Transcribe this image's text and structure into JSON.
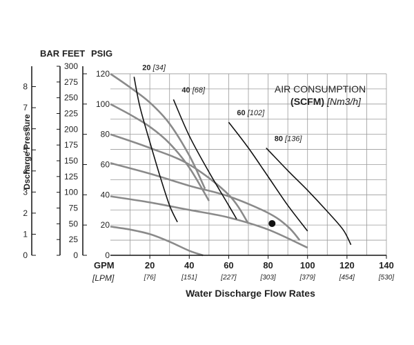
{
  "chart_data": {
    "type": "line",
    "headers": {
      "bar": "BAR",
      "feet": "FEET",
      "psig": "PSIG"
    },
    "ylabel": "Dscharge Pressure",
    "xlabel": "Water Discharge Flow Rates",
    "x_unit_primary": "GPM",
    "x_unit_secondary": "[LPM]",
    "xlim": [
      0,
      140
    ],
    "ylim": [
      0,
      125
    ],
    "x_ticks": [
      {
        "gpm": "20",
        "lpm": "[76]"
      },
      {
        "gpm": "40",
        "lpm": "[151]"
      },
      {
        "gpm": "60",
        "lpm": "[227]"
      },
      {
        "gpm": "80",
        "lpm": "[303]"
      },
      {
        "gpm": "100",
        "lpm": "[379]"
      },
      {
        "gpm": "120",
        "lpm": "[454]"
      },
      {
        "gpm": "140",
        "lpm": "[530]"
      }
    ],
    "psig_ticks": [
      "0",
      "20",
      "40",
      "60",
      "80",
      "100",
      "120"
    ],
    "feet_ticks": [
      "0",
      "25",
      "50",
      "75",
      "100",
      "125",
      "150",
      "175",
      "200",
      "225",
      "250",
      "275",
      "300"
    ],
    "bar_ticks": [
      "0",
      "1",
      "2",
      "3",
      "4",
      "5",
      "6",
      "7",
      "8"
    ],
    "inset": {
      "line1": "AIR CONSUMPTION",
      "scfm": "(SCFM)",
      "unit": "[Nm3/h]"
    },
    "pressure_curves": [
      {
        "x": [
          0,
          10,
          20,
          30,
          40,
          48
        ],
        "y": [
          120,
          111,
          101,
          87,
          66,
          44
        ]
      },
      {
        "x": [
          0,
          10,
          20,
          30,
          40,
          50
        ],
        "y": [
          100,
          93,
          85,
          74,
          58,
          36
        ]
      },
      {
        "x": [
          0,
          20,
          40,
          60,
          70
        ],
        "y": [
          80,
          71,
          60,
          40,
          21
        ]
      },
      {
        "x": [
          0,
          20,
          40,
          60,
          80,
          90,
          96
        ],
        "y": [
          61,
          54,
          46,
          39,
          28,
          19,
          10
        ]
      },
      {
        "x": [
          0,
          20,
          40,
          60,
          80,
          100
        ],
        "y": [
          39,
          35,
          30,
          25,
          17,
          5
        ]
      },
      {
        "x": [
          0,
          10,
          20,
          30,
          40,
          47
        ],
        "y": [
          19,
          17,
          14,
          9,
          3,
          0
        ]
      }
    ],
    "air_curves": [
      {
        "scfm": "20",
        "nm3h": "[34]",
        "x": [
          12,
          15,
          20,
          25,
          30,
          34
        ],
        "y": [
          118,
          98,
          75,
          53,
          33,
          22
        ]
      },
      {
        "scfm": "40",
        "nm3h": "[68]",
        "x": [
          32,
          40,
          50,
          60,
          64
        ],
        "y": [
          103,
          79,
          55,
          33,
          24
        ]
      },
      {
        "scfm": "60",
        "nm3h": "[102]",
        "x": [
          60,
          70,
          80,
          90,
          100
        ],
        "y": [
          88,
          71,
          52,
          33,
          16
        ]
      },
      {
        "scfm": "80",
        "nm3h": "[136]",
        "x": [
          79,
          90,
          100,
          110,
          118,
          122
        ],
        "y": [
          71,
          56,
          43,
          29,
          17,
          7
        ]
      }
    ],
    "marker": {
      "x": 82,
      "y": 21
    }
  }
}
